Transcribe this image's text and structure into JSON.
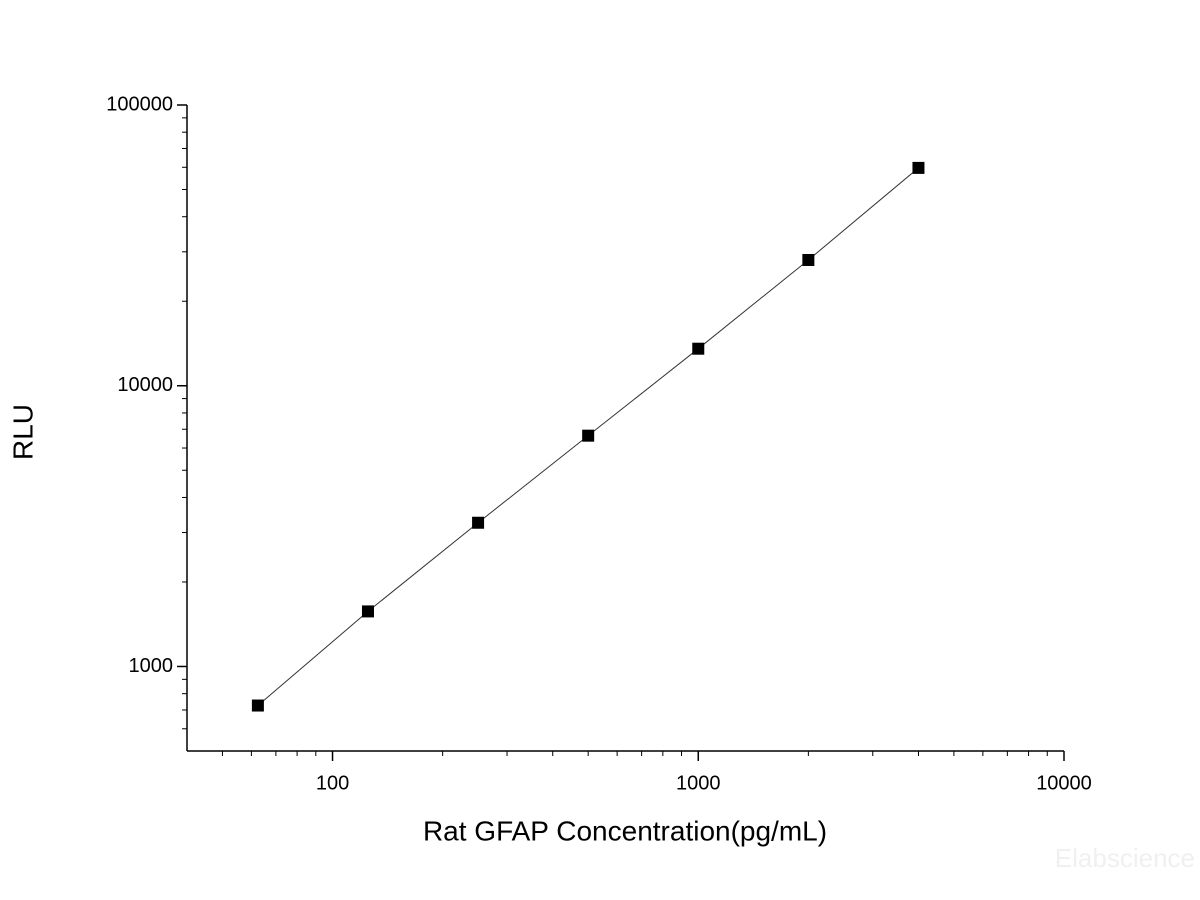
{
  "chart_data": {
    "type": "scatter-line",
    "x_label": "Rat GFAP Concentration(pg/mL)",
    "y_label": "RLU",
    "x": [
      62.5,
      125,
      250,
      500,
      1000,
      2000,
      4000
    ],
    "series": [
      {
        "name": "RLU",
        "color": "#000000",
        "values": [
          726,
          1571,
          3251,
          6640,
          13550,
          28050,
          59700
        ]
      }
    ],
    "xlim": [
      40,
      10000
    ],
    "ylim": [
      500,
      100000
    ],
    "xticks": [
      100,
      1000,
      10000
    ],
    "yticks": [
      1000,
      10000,
      100000
    ],
    "xminorticks": [
      50,
      60,
      70,
      80,
      90,
      200,
      300,
      400,
      500,
      600,
      700,
      800,
      900,
      2000,
      3000,
      4000,
      5000,
      6000,
      7000,
      8000,
      9000
    ],
    "yminorticks": [
      600,
      700,
      800,
      900,
      2000,
      3000,
      4000,
      5000,
      6000,
      7000,
      8000,
      9000,
      20000,
      30000,
      40000,
      50000,
      60000,
      70000,
      80000,
      90000
    ],
    "x_log": true,
    "y_log": true,
    "grid": false,
    "line_color": "#333333",
    "watermark": "Elabscience"
  }
}
